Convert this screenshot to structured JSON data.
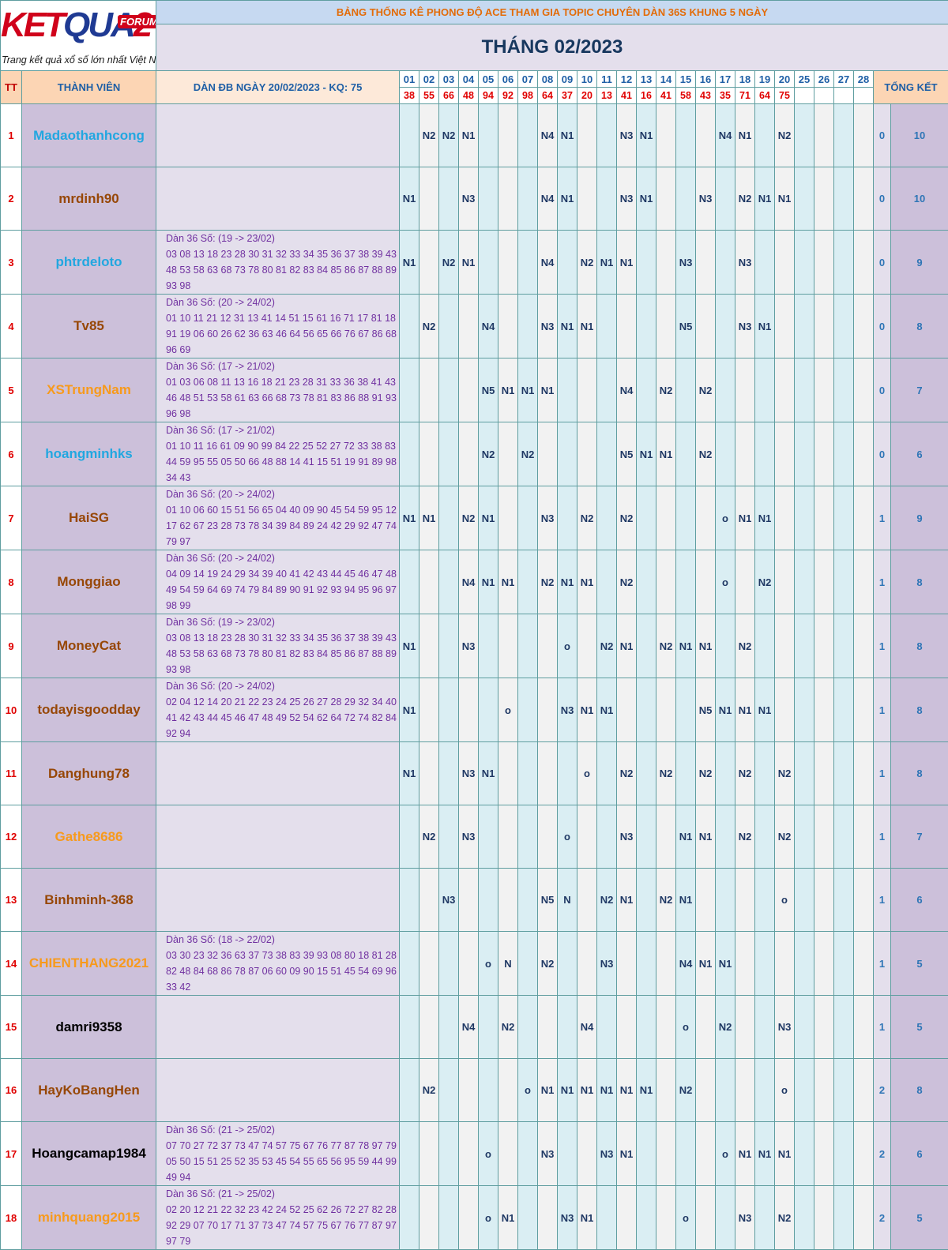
{
  "logo": {
    "brand_red1": "KET",
    "brand_blue": "QUA",
    "brand_red2": "2",
    "badge": "FORUM",
    "tagline": "Trang kết quả xổ số lớn nhất Việt Nam"
  },
  "header": {
    "title": "BẢNG THỐNG KÊ PHONG ĐỘ ACE THAM GIA TOPIC CHUYÊN DÀN 36S KHUNG 5 NGÀY",
    "month": "THÁNG 02/2023",
    "col_tt": "TT",
    "col_member": "THÀNH VIÊN",
    "col_dan": "DÀN ĐB NGÀY 20/02/2023 - KQ: 75",
    "col_total": "TỔNG KẾT"
  },
  "days": [
    "01",
    "02",
    "03",
    "04",
    "05",
    "06",
    "07",
    "08",
    "09",
    "10",
    "11",
    "12",
    "13",
    "14",
    "15",
    "16",
    "17",
    "18",
    "19",
    "20",
    "25",
    "26",
    "27",
    "28"
  ],
  "results": [
    "38",
    "55",
    "66",
    "48",
    "94",
    "92",
    "98",
    "64",
    "37",
    "20",
    "13",
    "41",
    "16",
    "41",
    "58",
    "43",
    "35",
    "71",
    "64",
    "75",
    "",
    "",
    "",
    ""
  ],
  "colors": {
    "cyan": "#22a7e0",
    "brown": "#974706",
    "orange": "#f79a1c",
    "black": "#000000"
  },
  "members": [
    {
      "tt": "1",
      "name": "Madaothanhcong",
      "color": "cyan",
      "dan": [],
      "cells": [
        "",
        "N2",
        "N2",
        "N1",
        "",
        "",
        "",
        "N4",
        "N1",
        "",
        "",
        "N3",
        "N1",
        "",
        "",
        "",
        "N4",
        "N1",
        "",
        "N2",
        "",
        "",
        "",
        ""
      ],
      "s1": "0",
      "s2": "10"
    },
    {
      "tt": "2",
      "name": "mrdinh90",
      "color": "brown",
      "dan": [],
      "cells": [
        "N1",
        "",
        "",
        "N3",
        "",
        "",
        "",
        "N4",
        "N1",
        "",
        "",
        "N3",
        "N1",
        "",
        "",
        "N3",
        "",
        "N2",
        "N1",
        "N1",
        "",
        "",
        "",
        ""
      ],
      "s1": "0",
      "s2": "10"
    },
    {
      "tt": "3",
      "name": "phtrdeloto",
      "color": "cyan",
      "dan": [
        "Dàn 36 Số: (19 -> 23/02)",
        "03 08 13 18 23 28 30 31 32 33 34 35 36 37 38 39 43",
        "48 53 58 63 68 73 78 80 81 82 83 84 85 86 87 88 89",
        "93 98"
      ],
      "cells": [
        "N1",
        "",
        "N2",
        "N1",
        "",
        "",
        "",
        "N4",
        "",
        "N2",
        "N1",
        "N1",
        "",
        "",
        "N3",
        "",
        "",
        "N3",
        "",
        "",
        "",
        "",
        "",
        ""
      ],
      "s1": "0",
      "s2": "9"
    },
    {
      "tt": "4",
      "name": "Tv85",
      "color": "brown",
      "dan": [
        "Dàn 36 Số: (20 -> 24/02)",
        "01 10 11 21 12 31 13 41 14 51 15 61 16 71 17 81 18",
        "91 19 06 60 26 62 36 63 46 64 56 65 66 76 67 86 68",
        "96 69"
      ],
      "cells": [
        "",
        "N2",
        "",
        "",
        "N4",
        "",
        "",
        "N3",
        "N1",
        "N1",
        "",
        "",
        "",
        "",
        "N5",
        "",
        "",
        "N3",
        "N1",
        "",
        "",
        "",
        "",
        ""
      ],
      "s1": "0",
      "s2": "8"
    },
    {
      "tt": "5",
      "name": "XSTrungNam",
      "color": "orange",
      "dan": [
        "Dàn 36 Số: (17 -> 21/02)",
        "01 03 06 08 11 13 16 18 21 23 28 31 33 36 38 41 43",
        "46 48 51 53 58 61 63 66 68 73 78 81 83 86 88 91 93",
        "96 98"
      ],
      "cells": [
        "",
        "",
        "",
        "",
        "N5",
        "N1",
        "N1",
        "N1",
        "",
        "",
        "",
        "N4",
        "",
        "N2",
        "",
        "N2",
        "",
        "",
        "",
        "",
        "",
        "",
        "",
        ""
      ],
      "s1": "0",
      "s2": "7"
    },
    {
      "tt": "6",
      "name": "hoangminhks",
      "color": "cyan",
      "dan": [
        "Dàn 36 Số: (17 -> 21/02)",
        "01 10 11 16 61 09 90 99 84 22 25 52 27 72 33 38 83",
        "44 59 95 55 05 50 66 48 88 14 41 15 51 19 91 89 98",
        "34 43"
      ],
      "cells": [
        "",
        "",
        "",
        "",
        "N2",
        "",
        "N2",
        "",
        "",
        "",
        "",
        "N5",
        "N1",
        "N1",
        "",
        "N2",
        "",
        "",
        "",
        "",
        "",
        "",
        "",
        ""
      ],
      "s1": "0",
      "s2": "6"
    },
    {
      "tt": "7",
      "name": "HaiSG",
      "color": "brown",
      "dan": [
        "Dàn 36 Số: (20 -> 24/02)",
        "01 10 06 60 15 51 56 65 04 40 09 90 45 54 59 95 12",
        "17 62 67 23 28 73 78 34 39 84 89 24 42 29 92 47 74",
        "79 97"
      ],
      "cells": [
        "N1",
        "N1",
        "",
        "N2",
        "N1",
        "",
        "",
        "N3",
        "",
        "N2",
        "",
        "N2",
        "",
        "",
        "",
        "",
        "o",
        "N1",
        "N1",
        "",
        "",
        "",
        "",
        ""
      ],
      "s1": "1",
      "s2": "9"
    },
    {
      "tt": "8",
      "name": "Monggiao",
      "color": "brown",
      "dan": [
        "Dàn 36 Số: (20 -> 24/02)",
        "04 09 14 19 24 29 34 39 40 41 42 43 44 45 46 47 48",
        "49 54 59 64 69 74 79 84 89 90 91 92 93 94 95 96 97",
        "98 99"
      ],
      "cells": [
        "",
        "",
        "",
        "N4",
        "N1",
        "N1",
        "",
        "N2",
        "N1",
        "N1",
        "",
        "N2",
        "",
        "",
        "",
        "",
        "o",
        "",
        "N2",
        "",
        "",
        "",
        "",
        ""
      ],
      "s1": "1",
      "s2": "8"
    },
    {
      "tt": "9",
      "name": "MoneyCat",
      "color": "brown",
      "dan": [
        "Dàn 36 Số: (19 -> 23/02)",
        "03 08 13 18 23 28 30 31 32 33 34 35 36 37 38 39 43",
        "48 53 58 63 68 73 78 80 81 82 83 84 85 86 87 88 89",
        "93 98"
      ],
      "cells": [
        "N1",
        "",
        "",
        "N3",
        "",
        "",
        "",
        "",
        "o",
        "",
        "N2",
        "N1",
        "",
        "N2",
        "N1",
        "N1",
        "",
        "N2",
        "",
        "",
        "",
        "",
        "",
        ""
      ],
      "s1": "1",
      "s2": "8"
    },
    {
      "tt": "10",
      "name": "todayisgoodday",
      "color": "brown",
      "dan": [
        "Dàn 36 Số: (20 -> 24/02)",
        "02 04 12 14 20 21 22 23 24 25 26 27 28 29 32 34 40",
        "41 42 43 44 45 46 47 48 49 52 54 62 64 72 74 82 84",
        "92 94"
      ],
      "cells": [
        "N1",
        "",
        "",
        "",
        "",
        "o",
        "",
        "",
        "N3",
        "N1",
        "N1",
        "",
        "",
        "",
        "",
        "N5",
        "N1",
        "N1",
        "N1",
        "",
        "",
        "",
        "",
        ""
      ],
      "s1": "1",
      "s2": "8"
    },
    {
      "tt": "11",
      "name": "Danghung78",
      "color": "brown",
      "dan": [],
      "cells": [
        "N1",
        "",
        "",
        "N3",
        "N1",
        "",
        "",
        "",
        "",
        "o",
        "",
        "N2",
        "",
        "N2",
        "",
        "N2",
        "",
        "N2",
        "",
        "N2",
        "",
        "",
        "",
        ""
      ],
      "s1": "1",
      "s2": "8"
    },
    {
      "tt": "12",
      "name": "Gathe8686",
      "color": "orange",
      "dan": [],
      "cells": [
        "",
        "N2",
        "",
        "N3",
        "",
        "",
        "",
        "",
        "o",
        "",
        "",
        "N3",
        "",
        "",
        "N1",
        "N1",
        "",
        "N2",
        "",
        "N2",
        "",
        "",
        "",
        ""
      ],
      "s1": "1",
      "s2": "7"
    },
    {
      "tt": "13",
      "name": "Binhminh-368",
      "color": "brown",
      "dan": [],
      "cells": [
        "",
        "",
        "N3",
        "",
        "",
        "",
        "",
        "N5",
        "N",
        "",
        "N2",
        "N1",
        "",
        "N2",
        "N1",
        "",
        "",
        "",
        "",
        "o",
        "",
        "",
        "",
        ""
      ],
      "s1": "1",
      "s2": "6"
    },
    {
      "tt": "14",
      "name": "CHIENTHANG2021",
      "color": "orange",
      "dan": [
        "Dàn 36 Số: (18 -> 22/02)",
        "03 30 23 32 36 63 37 73 38 83 39 93 08 80 18 81 28",
        "82 48 84 68 86 78 87 06 60 09 90 15 51 45 54 69 96",
        "33 42"
      ],
      "cells": [
        "",
        "",
        "",
        "",
        "o",
        "N",
        "",
        "N2",
        "",
        "",
        "N3",
        "",
        "",
        "",
        "N4",
        "N1",
        "N1",
        "",
        "",
        "",
        "",
        "",
        "",
        ""
      ],
      "s1": "1",
      "s2": "5"
    },
    {
      "tt": "15",
      "name": "damri9358",
      "color": "black",
      "dan": [],
      "cells": [
        "",
        "",
        "",
        "N4",
        "",
        "N2",
        "",
        "",
        "",
        "N4",
        "",
        "",
        "",
        "",
        "o",
        "",
        "N2",
        "",
        "",
        "N3",
        "",
        "",
        "",
        ""
      ],
      "s1": "1",
      "s2": "5"
    },
    {
      "tt": "16",
      "name": "HayKoBangHen",
      "color": "brown",
      "dan": [],
      "cells": [
        "",
        "N2",
        "",
        "",
        "",
        "",
        "o",
        "N1",
        "N1",
        "N1",
        "N1",
        "N1",
        "N1",
        "",
        "N2",
        "",
        "",
        "",
        "",
        "o",
        "",
        "",
        "",
        ""
      ],
      "s1": "2",
      "s2": "8"
    },
    {
      "tt": "17",
      "name": "Hoangcamap1984",
      "color": "black",
      "dan": [
        "Dàn 36 Số: (21 -> 25/02)",
        "07 70 27 72 37 73 47 74 57 75 67 76 77 87 78 97 79",
        "05 50 15 51 25 52 35 53 45 54 55 65 56 95 59 44 99",
        "49 94"
      ],
      "cells": [
        "",
        "",
        "",
        "",
        "o",
        "",
        "",
        "N3",
        "",
        "",
        "N3",
        "N1",
        "",
        "",
        "",
        "",
        "o",
        "N1",
        "N1",
        "N1",
        "",
        "",
        "",
        ""
      ],
      "s1": "2",
      "s2": "6"
    },
    {
      "tt": "18",
      "name": "minhquang2015",
      "color": "orange",
      "dan": [
        "Dàn 36 Số: (21 -> 25/02)",
        "02 20 12 21 22 32 23 42 24 52 25 62 26 72 27 82 28",
        "92 29 07 70 17 71 37 73 47 74 57 75 67 76 77 87 97",
        "97 79"
      ],
      "cells": [
        "",
        "",
        "",
        "",
        "o",
        "N1",
        "",
        "",
        "N3",
        "N1",
        "",
        "",
        "",
        "",
        "o",
        "",
        "",
        "N3",
        "",
        "N2",
        "",
        "",
        "",
        ""
      ],
      "s1": "2",
      "s2": "5"
    }
  ]
}
